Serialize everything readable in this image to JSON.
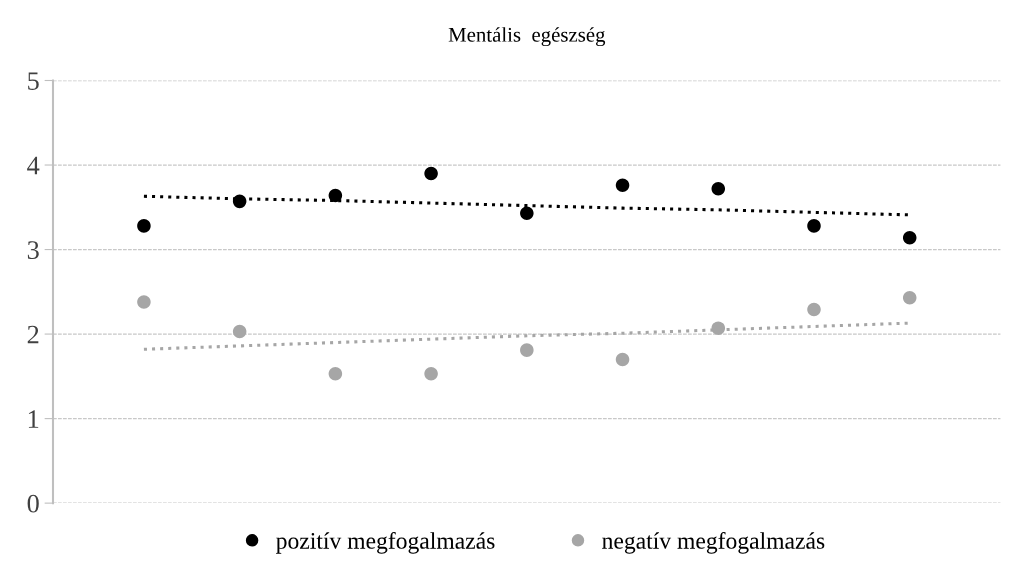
{
  "chart_data": {
    "type": "scatter",
    "title": "Mentális  egészség",
    "categories": [
      null,
      null,
      null,
      null,
      null,
      null,
      null,
      null,
      null
    ],
    "series": [
      {
        "name": "pozitív megfogalmazás",
        "color": "#000000",
        "values": [
          3.28,
          3.57,
          3.64,
          3.9,
          3.43,
          3.76,
          3.72,
          3.28,
          3.14
        ]
      },
      {
        "name": "negatív megfogalmazás",
        "color": "#a6a6a6",
        "values": [
          2.38,
          2.03,
          1.53,
          1.53,
          1.81,
          1.7,
          2.07,
          2.29,
          2.43
        ]
      },
      {
        "type": "line",
        "color": "#000000",
        "line_style": "dotted",
        "marker": "none",
        "values": [
          3.63,
          3.6,
          3.58,
          3.55,
          3.52,
          3.49,
          3.47,
          3.44,
          3.41
        ]
      },
      {
        "type": "line",
        "color": "#a6a6a6",
        "line_style": "dotted",
        "marker": "none",
        "values": [
          1.82,
          1.86,
          1.9,
          1.94,
          1.98,
          2.01,
          2.05,
          2.09,
          2.13
        ]
      }
    ],
    "ylim": [
      0,
      5
    ],
    "yticks": [
      0,
      1,
      2,
      3,
      4,
      5
    ],
    "grid": "y",
    "legend": "bottom",
    "marker": "circle"
  }
}
